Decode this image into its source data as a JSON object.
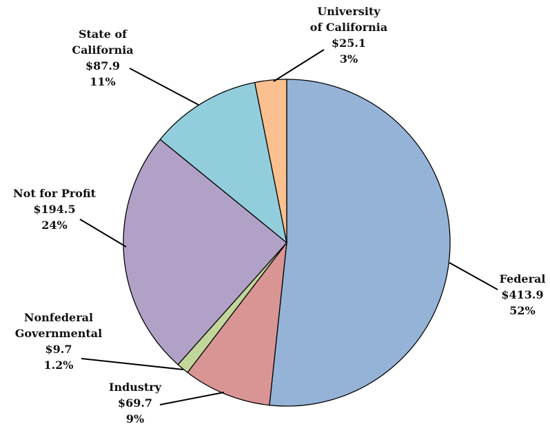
{
  "chart_data": {
    "type": "pie",
    "title": "",
    "start_angle_deg": 0,
    "direction": "clockwise",
    "slices": [
      {
        "label_lines": [
          "Federal"
        ],
        "value": 413.9,
        "value_label": "$413.9",
        "percent_label": "52%",
        "color": "#95b3d7"
      },
      {
        "label_lines": [
          "Industry"
        ],
        "value": 69.7,
        "value_label": "$69.7",
        "percent_label": "9%",
        "color": "#d99594"
      },
      {
        "label_lines": [
          "Nonfederal",
          "Governmental"
        ],
        "value": 9.7,
        "value_label": "$9.7",
        "percent_label": "1.2%",
        "color": "#c2d69b"
      },
      {
        "label_lines": [
          "Not for Profit"
        ],
        "value": 194.5,
        "value_label": "$194.5",
        "percent_label": "24%",
        "color": "#b2a1c7"
      },
      {
        "label_lines": [
          "State of",
          "California"
        ],
        "value": 87.9,
        "value_label": "$87.9",
        "percent_label": "11%",
        "color": "#92cddc"
      },
      {
        "label_lines": [
          "University",
          "of California"
        ],
        "value": 25.1,
        "value_label": "$25.1",
        "percent_label": "3%",
        "color": "#fac08f"
      }
    ]
  }
}
